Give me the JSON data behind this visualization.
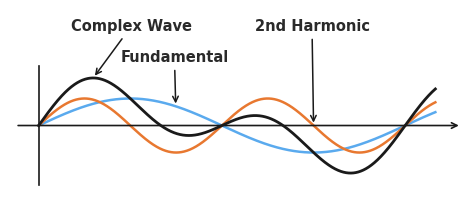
{
  "background_color": "#ffffff",
  "x_start": 0.0,
  "x_end": 6.8,
  "fundamental_amplitude": 1.0,
  "fundamental_freq": 1.0,
  "harmonic_amplitude": 1.0,
  "harmonic_freq": 2.0,
  "fundamental_color": "#5aaaee",
  "harmonic_color": "#e87830",
  "complex_color": "#1a1a1a",
  "axis_color": "#1a1a1a",
  "label_complex": "Complex Wave",
  "label_fundamental": "Fundamental",
  "label_harmonic": "2nd Harmonic",
  "label_fontsize": 10.5,
  "arrow_color": "#1a1a1a",
  "xlim": [
    -0.5,
    7.3
  ],
  "ylim": [
    -2.5,
    4.5
  ]
}
